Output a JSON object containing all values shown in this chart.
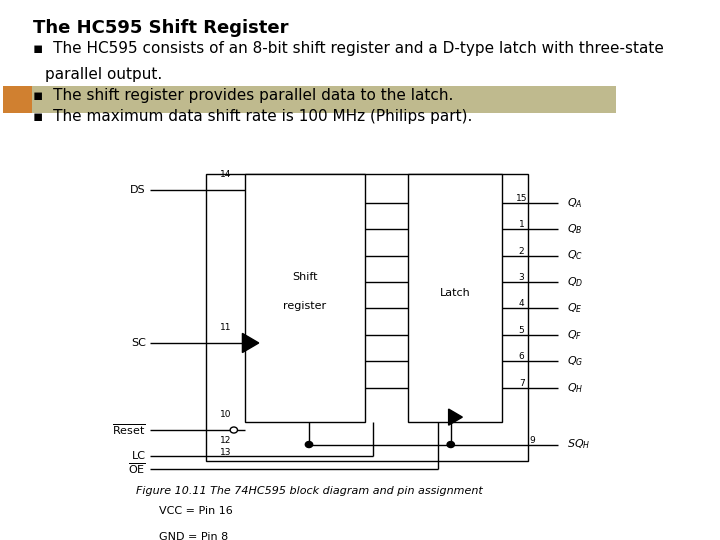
{
  "title": "The HC595 Shift Register",
  "bullets": [
    "▪  The HC595 consists of an 8-bit shift register and a D-type latch with three-state",
    "parallel output.",
    "▪  The shift register provides parallel data to the latch.",
    "▪  The maximum data shift rate is 100 MHz (Philips part)."
  ],
  "highlight_color": "#bfba8e",
  "orange_bar_color": "#d08030",
  "bg_color": "#ffffff",
  "title_fontsize": 13,
  "bullet_fontsize": 11,
  "figure_caption": "Figure 10.11 The 74HC595 block diagram and pin assignment",
  "vcc_gnd": [
    "VCC = Pin 16",
    "GND = Pin 8"
  ],
  "output_pins": [
    15,
    1,
    2,
    3,
    4,
    5,
    6,
    7
  ],
  "output_labels": [
    "Q_A",
    "Q_B",
    "Q_C",
    "Q_D",
    "Q_E",
    "Q_F",
    "Q_G",
    "Q_H"
  ]
}
